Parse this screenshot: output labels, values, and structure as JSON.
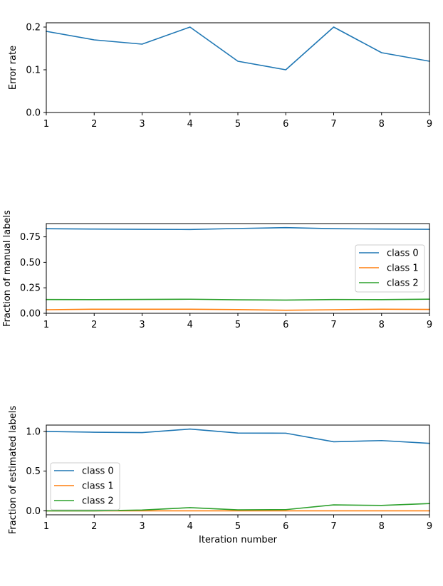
{
  "colors": {
    "c0": "#1f77b4",
    "c1": "#ff7f0e",
    "c2": "#2ca02c"
  },
  "chart_data": [
    {
      "type": "line",
      "title": "",
      "xlabel": "",
      "ylabel": "Error rate",
      "x": [
        1,
        2,
        3,
        4,
        5,
        6,
        7,
        8,
        9
      ],
      "xlim": [
        1,
        9
      ],
      "ylim": [
        0,
        0.21
      ],
      "xticks": [
        "1",
        "2",
        "3",
        "4",
        "5",
        "6",
        "7",
        "8",
        "9"
      ],
      "yticks": [
        0.0,
        0.1,
        0.2
      ],
      "ytick_labels": [
        "0.0",
        "0.1",
        "0.2"
      ],
      "grid": false,
      "legend": null,
      "series": [
        {
          "color": "#1f77b4",
          "values": [
            0.19,
            0.17,
            0.16,
            0.2,
            0.12,
            0.1,
            0.2,
            0.14,
            0.12
          ]
        }
      ]
    },
    {
      "type": "line",
      "title": "",
      "xlabel": "",
      "ylabel": "Fraction of manual labels",
      "x": [
        1,
        2,
        3,
        4,
        5,
        6,
        7,
        8,
        9
      ],
      "xlim": [
        1,
        9
      ],
      "ylim": [
        0,
        0.88
      ],
      "xticks": [
        "1",
        "2",
        "3",
        "4",
        "5",
        "6",
        "7",
        "8",
        "9"
      ],
      "yticks": [
        0.0,
        0.25,
        0.5,
        0.75
      ],
      "ytick_labels": [
        "0.00",
        "0.25",
        "0.50",
        "0.75"
      ],
      "grid": false,
      "legend": "center-right",
      "series": [
        {
          "name": "class 0",
          "color": "#1f77b4",
          "values": [
            0.83,
            0.826,
            0.824,
            0.822,
            0.832,
            0.84,
            0.83,
            0.826,
            0.824
          ]
        },
        {
          "name": "class 1",
          "color": "#ff7f0e",
          "values": [
            0.035,
            0.04,
            0.04,
            0.04,
            0.036,
            0.03,
            0.035,
            0.04,
            0.038
          ]
        },
        {
          "name": "class 2",
          "color": "#2ca02c",
          "values": [
            0.135,
            0.134,
            0.136,
            0.138,
            0.132,
            0.13,
            0.135,
            0.134,
            0.138
          ]
        }
      ]
    },
    {
      "type": "line",
      "title": "",
      "xlabel": "Iteration number",
      "ylabel": "Fraction of estimated labels",
      "x": [
        1,
        2,
        3,
        4,
        5,
        6,
        7,
        8,
        9
      ],
      "xlim": [
        1,
        9
      ],
      "ylim": [
        -0.05,
        1.08
      ],
      "xticks": [
        "1",
        "2",
        "3",
        "4",
        "5",
        "6",
        "7",
        "8",
        "9"
      ],
      "yticks": [
        0.0,
        0.5,
        1.0
      ],
      "ytick_labels": [
        "0.0",
        "0.5",
        "1.0"
      ],
      "grid": false,
      "legend": "center-left",
      "series": [
        {
          "name": "class 0",
          "color": "#1f77b4",
          "values": [
            1.0,
            0.99,
            0.985,
            1.03,
            0.98,
            0.978,
            0.87,
            0.885,
            0.85
          ]
        },
        {
          "name": "class 1",
          "color": "#ff7f0e",
          "values": [
            0.0,
            0.0,
            0.0,
            0.0,
            0.0,
            0.0,
            0.0,
            0.0,
            0.0
          ]
        },
        {
          "name": "class 2",
          "color": "#2ca02c",
          "values": [
            0.0,
            0.0,
            0.01,
            0.04,
            0.012,
            0.015,
            0.075,
            0.068,
            0.092
          ]
        }
      ]
    }
  ]
}
